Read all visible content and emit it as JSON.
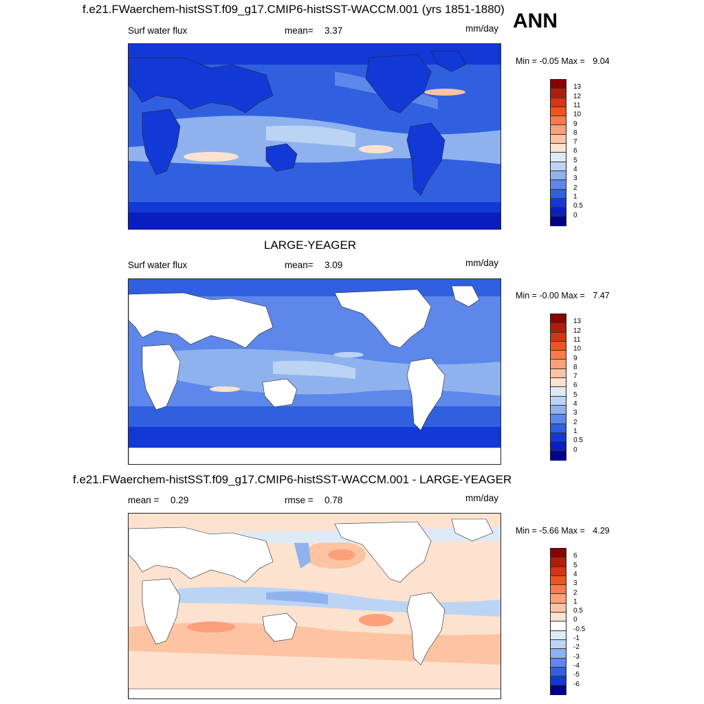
{
  "annotation": "ANN",
  "units": "mm/day",
  "panels": [
    {
      "id": "model",
      "title": "f.e21.FWaerchem-histSST.f09_g17.CMIP6-histSST-WACCM.001 (yrs 1851-1880)",
      "left_label": "Surf water flux",
      "stat1_label": "mean=",
      "stat1_value": "3.37",
      "stat2_label": "",
      "stat2_value": "",
      "units": "mm/day",
      "min_label": "Min =",
      "min_value": "-0.05",
      "max_label": "Max =",
      "max_value": "9.04",
      "colorbar_ticks": [
        "13",
        "12",
        "11",
        "10",
        "9",
        "8",
        "7",
        "6",
        "5",
        "4",
        "3",
        "2",
        "1",
        "0.5",
        "0"
      ],
      "colorbar_colors": [
        "#8b0000",
        "#b21d0b",
        "#d83312",
        "#f0541e",
        "#fb7b4a",
        "#fca079",
        "#fdc3a3",
        "#fde2cf",
        "#deebf7",
        "#bcd4f3",
        "#8fb2ef",
        "#5d87ea",
        "#3060e0",
        "#1239d6",
        "#0a1ec0",
        "#00008b"
      ]
    },
    {
      "id": "obs",
      "title": "LARGE-YEAGER",
      "left_label": "Surf water flux",
      "stat1_label": "mean=",
      "stat1_value": "3.09",
      "stat2_label": "",
      "stat2_value": "",
      "units": "mm/day",
      "min_label": "Min =",
      "min_value": "-0.00",
      "max_label": "Max =",
      "max_value": "7.47",
      "colorbar_ticks": [
        "13",
        "12",
        "11",
        "10",
        "9",
        "8",
        "7",
        "6",
        "5",
        "4",
        "3",
        "2",
        "1",
        "0.5",
        "0"
      ],
      "colorbar_colors": [
        "#8b0000",
        "#b21d0b",
        "#d83312",
        "#f0541e",
        "#fb7b4a",
        "#fca079",
        "#fdc3a3",
        "#fde2cf",
        "#deebf7",
        "#bcd4f3",
        "#8fb2ef",
        "#5d87ea",
        "#3060e0",
        "#1239d6",
        "#0a1ec0",
        "#00008b"
      ]
    },
    {
      "id": "diff",
      "title": "f.e21.FWaerchem-histSST.f09_g17.CMIP6-histSST-WACCM.001 - LARGE-YEAGER",
      "left_label": "",
      "stat1_label": "mean =",
      "stat1_value": "0.29",
      "stat2_label": "rmse =",
      "stat2_value": "0.78",
      "units": "mm/day",
      "min_label": "Min =",
      "min_value": "-5.66",
      "max_label": "Max =",
      "max_value": "4.29",
      "colorbar_ticks": [
        "6",
        "5",
        "4",
        "3",
        "2",
        "1",
        "0.5",
        "0",
        "-0.5",
        "-1",
        "-2",
        "-3",
        "-4",
        "-5",
        "-6"
      ],
      "colorbar_colors": [
        "#8b0000",
        "#b21d0b",
        "#d83312",
        "#f0541e",
        "#fb7b4a",
        "#fca079",
        "#fdc3a3",
        "#fde2cf",
        "#ffffff",
        "#deebf7",
        "#bcd4f3",
        "#8fb2ef",
        "#5d87ea",
        "#3060e0",
        "#1239d6",
        "#00008b"
      ]
    }
  ],
  "chart_data": [
    {
      "type": "heatmap",
      "title": "f.e21.FWaerchem-histSST.f09_g17.CMIP6-histSST-WACCM.001 (yrs 1851-1880)",
      "variable": "Surf water flux",
      "units": "mm/day",
      "mean": 3.37,
      "min": -0.05,
      "max": 9.04,
      "levels": [
        0,
        0.5,
        1,
        2,
        3,
        4,
        5,
        6,
        7,
        8,
        9,
        10,
        11,
        12,
        13
      ]
    },
    {
      "type": "heatmap",
      "title": "LARGE-YEAGER",
      "variable": "Surf water flux",
      "units": "mm/day",
      "mean": 3.09,
      "min": -0.0,
      "max": 7.47,
      "levels": [
        0,
        0.5,
        1,
        2,
        3,
        4,
        5,
        6,
        7,
        8,
        9,
        10,
        11,
        12,
        13
      ]
    },
    {
      "type": "heatmap",
      "title": "f.e21.FWaerchem-histSST.f09_g17.CMIP6-histSST-WACCM.001 - LARGE-YEAGER",
      "units": "mm/day",
      "mean": 0.29,
      "rmse": 0.78,
      "min": -5.66,
      "max": 4.29,
      "levels": [
        -6,
        -5,
        -4,
        -3,
        -2,
        -1,
        -0.5,
        0,
        0.5,
        1,
        2,
        3,
        4,
        5,
        6
      ]
    }
  ]
}
